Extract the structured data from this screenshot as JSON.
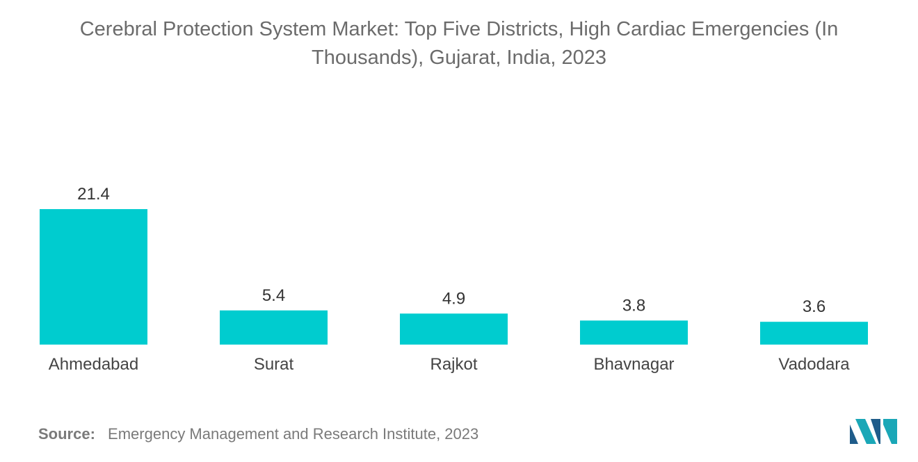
{
  "chart_data": {
    "type": "bar",
    "title": "Cerebral Protection System Market: Top Five Districts, High Cardiac Emergencies (In Thousands), Gujarat, India, 2023",
    "categories": [
      "Ahmedabad",
      "Surat",
      "Rajkot",
      "Bhavnagar",
      "Vadodara"
    ],
    "values": [
      21.4,
      5.4,
      4.9,
      3.8,
      3.6
    ],
    "value_labels": [
      "21.4",
      "5.4",
      "4.9",
      "3.8",
      "3.6"
    ],
    "xlabel": "",
    "ylabel": "",
    "ylim": [
      0,
      21.4
    ],
    "grid": false,
    "bar_color": "#00cccf"
  },
  "source": {
    "label": "Source:",
    "text": "Emergency Management and Research Institute, 2023"
  },
  "logo": {
    "icon": "mordor-intelligence-logo-icon",
    "colors": [
      "#1f5c8a",
      "#1aa7b7"
    ]
  }
}
